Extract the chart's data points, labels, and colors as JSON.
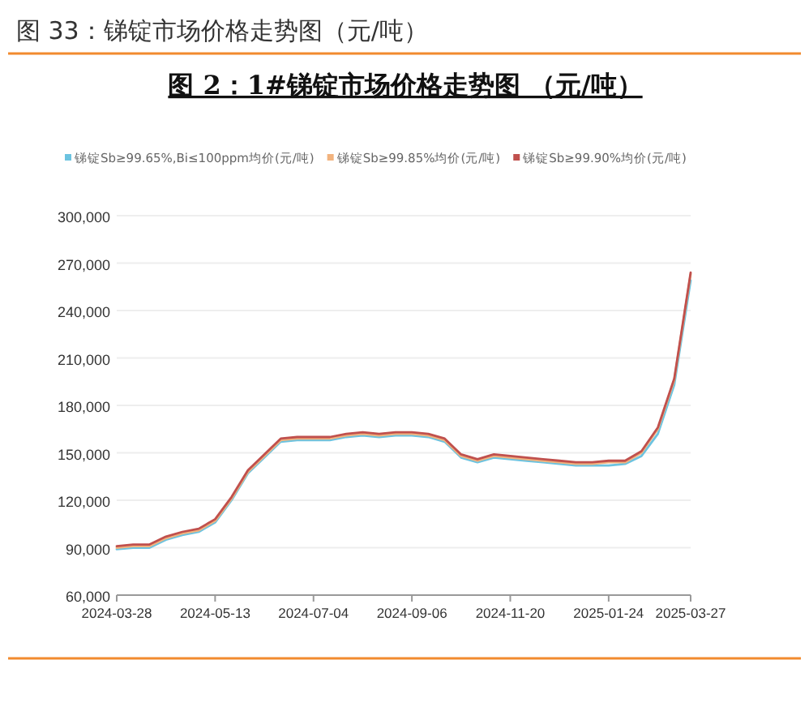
{
  "chart_data": {
    "type": "line",
    "title": "图 33：锑锭市场价格走势图（元/吨）",
    "subtitle": "图 2：1#锑锭市场价格走势图 （元/吨）",
    "categories": [
      "2024-03-28",
      null,
      null,
      null,
      null,
      null,
      "2024-05-13",
      null,
      null,
      null,
      null,
      null,
      "2024-07-04",
      null,
      null,
      null,
      null,
      null,
      "2024-09-06",
      null,
      null,
      null,
      null,
      null,
      "2024-11-20",
      null,
      null,
      null,
      null,
      null,
      "2025-01-24",
      null,
      null,
      null,
      null,
      "2025-03-27"
    ],
    "series": [
      {
        "name": "锑锭Sb≥99.65%,Bi≤100ppm均价(元/吨)",
        "color": "#6cc3e0",
        "values": [
          89000,
          90000,
          90000,
          95000,
          98000,
          100000,
          106000,
          120000,
          137000,
          147000,
          157000,
          158000,
          158000,
          158000,
          160000,
          161000,
          160000,
          161000,
          161000,
          160000,
          157000,
          147000,
          144000,
          147000,
          146000,
          145000,
          144000,
          143000,
          142000,
          142000,
          142000,
          143000,
          148000,
          162000,
          193000,
          259000
        ]
      },
      {
        "name": "锑锭Sb≥99.85%均价(元/吨)",
        "color": "#f2b37e",
        "values": [
          90000,
          91000,
          91000,
          96000,
          99000,
          101000,
          107000,
          121000,
          138000,
          148000,
          158000,
          159000,
          159000,
          159000,
          161000,
          162000,
          161000,
          162000,
          162000,
          161000,
          158000,
          148000,
          145000,
          148000,
          147000,
          146000,
          145000,
          144000,
          143000,
          143000,
          144000,
          144000,
          150000,
          165000,
          196000,
          263000
        ]
      },
      {
        "name": "锑锭Sb≥99.90%均价(元/吨)",
        "color": "#c0504d",
        "values": [
          91000,
          92000,
          92000,
          97000,
          100000,
          102000,
          108000,
          122000,
          139000,
          149000,
          159000,
          160000,
          160000,
          160000,
          162000,
          163000,
          162000,
          163000,
          163000,
          162000,
          159000,
          149000,
          146000,
          149000,
          148000,
          147000,
          146000,
          145000,
          144000,
          144000,
          145000,
          145000,
          151000,
          166000,
          197000,
          264000
        ]
      }
    ],
    "ylim": [
      60000,
      300000
    ],
    "yticks": [
      {
        "value": 60000,
        "label": "60,000"
      },
      {
        "value": 90000,
        "label": "90,000"
      },
      {
        "value": 120000,
        "label": "120,000"
      },
      {
        "value": 150000,
        "label": "150,000"
      },
      {
        "value": 180000,
        "label": "180,000"
      },
      {
        "value": 210000,
        "label": "210,000"
      },
      {
        "value": 240000,
        "label": "240,000"
      },
      {
        "value": 270000,
        "label": "270,000"
      },
      {
        "value": 300000,
        "label": "300,000"
      }
    ],
    "grid": "y",
    "legend": "top left",
    "marker": "none",
    "line_style": "solid"
  }
}
